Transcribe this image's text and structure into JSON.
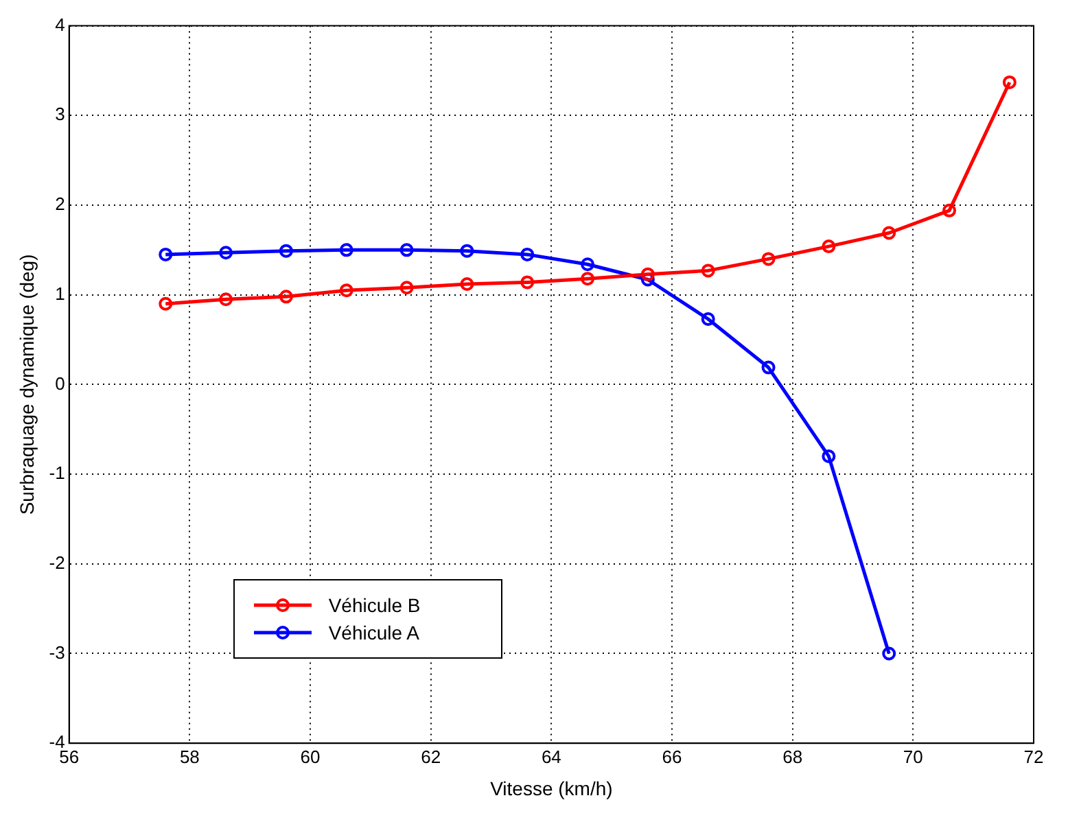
{
  "chart_data": {
    "type": "line",
    "xlabel": "Vitesse (km/h)",
    "ylabel": "Surbraquage dynamique (deg)",
    "xlim": [
      56,
      72
    ],
    "xticks": [
      56,
      58,
      60,
      62,
      64,
      66,
      68,
      70,
      72
    ],
    "ylim": [
      -4,
      4
    ],
    "yticks": [
      -4,
      -3,
      -2,
      -1,
      0,
      1,
      2,
      3,
      4
    ],
    "grid": true,
    "legend": "bottom left",
    "marker": "circle",
    "line_style": "solid",
    "series": [
      {
        "name": "Véhicule B",
        "color": "#ff0000",
        "x": [
          57.6,
          58.6,
          59.6,
          60.6,
          61.6,
          62.6,
          63.6,
          64.6,
          65.6,
          66.6,
          67.6,
          68.6,
          69.6,
          70.6,
          71.6
        ],
        "values": [
          0.9,
          0.95,
          0.98,
          1.05,
          1.08,
          1.12,
          1.14,
          1.18,
          1.23,
          1.27,
          1.4,
          1.54,
          1.69,
          1.94,
          3.37
        ]
      },
      {
        "name": "Véhicule A",
        "color": "#0000ff",
        "x": [
          57.6,
          58.6,
          59.6,
          60.6,
          61.6,
          62.6,
          63.6,
          64.6,
          65.6,
          66.6,
          67.6,
          68.6,
          69.6
        ],
        "values": [
          1.45,
          1.47,
          1.49,
          1.5,
          1.5,
          1.49,
          1.45,
          1.34,
          1.17,
          0.73,
          0.19,
          -0.8,
          -3.0
        ]
      }
    ]
  }
}
